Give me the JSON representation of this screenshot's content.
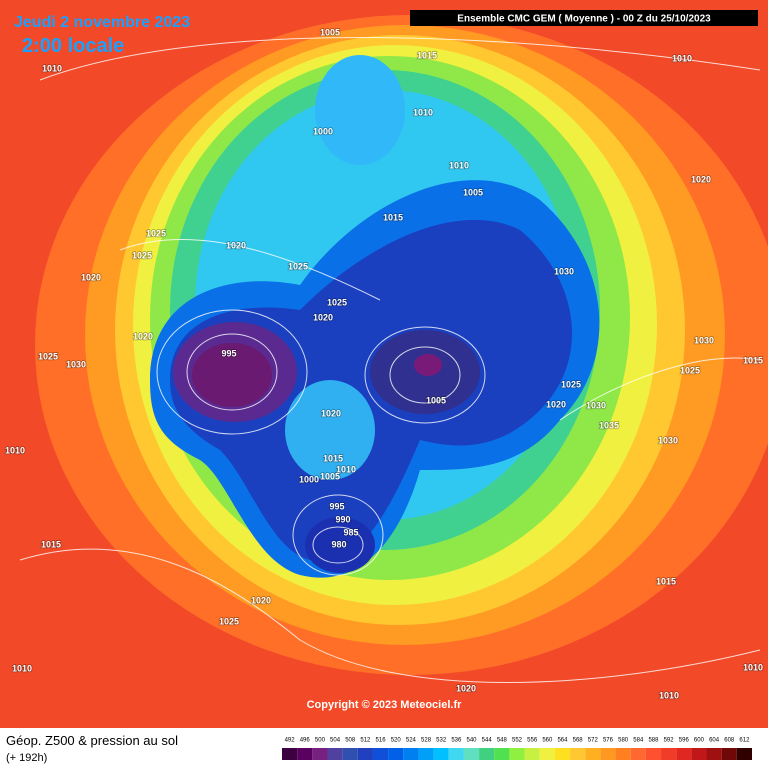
{
  "header": {
    "date": "Jeudi 2 novembre 2023",
    "time": "2:00 locale",
    "model": "Ensemble CMC GEM  ( Moyenne )  -  00 Z du 25/10/2023"
  },
  "copyright": "Copyright © 2023 Meteociel.fr",
  "footer": {
    "title": "Géop. Z500 & pression au sol",
    "lead": "(+ 192h)"
  },
  "isobar_labels": [
    "1005",
    "1015",
    "1010",
    "1010",
    "1010",
    "1000",
    "1010",
    "1005",
    "1020",
    "1015",
    "1025",
    "1020",
    "1025",
    "1025",
    "1030",
    "1020",
    "1025",
    "1020",
    "1020",
    "995",
    "1030",
    "1025",
    "1030",
    "1015",
    "1025",
    "1025",
    "1005",
    "1020",
    "1030",
    "1020",
    "1035",
    "1030",
    "1010",
    "1015",
    "1010",
    "1005",
    "1000",
    "995",
    "990",
    "985",
    "980",
    "1015",
    "1015",
    "1020",
    "1025",
    "1010",
    "1010",
    "1020",
    "1010"
  ],
  "legend": {
    "levels": [
      492,
      496,
      500,
      504,
      508,
      512,
      516,
      520,
      524,
      528,
      532,
      536,
      540,
      544,
      548,
      552,
      556,
      560,
      564,
      568,
      572,
      576,
      580,
      584,
      588,
      592,
      596,
      600,
      604,
      608,
      612
    ],
    "colors": [
      "#3d0040",
      "#5a0060",
      "#782080",
      "#5040a0",
      "#3050b0",
      "#2040c0",
      "#1050d8",
      "#0060e8",
      "#0080f0",
      "#00a0f8",
      "#00c0ff",
      "#40d8f0",
      "#60e0c0",
      "#40d080",
      "#50e050",
      "#90f040",
      "#c8f040",
      "#f0f040",
      "#ffe020",
      "#ffc830",
      "#ffb020",
      "#ff9820",
      "#ff8020",
      "#ff6830",
      "#ff5030",
      "#f03c28",
      "#e02820",
      "#c01818",
      "#a01010",
      "#700808",
      "#300000"
    ]
  }
}
